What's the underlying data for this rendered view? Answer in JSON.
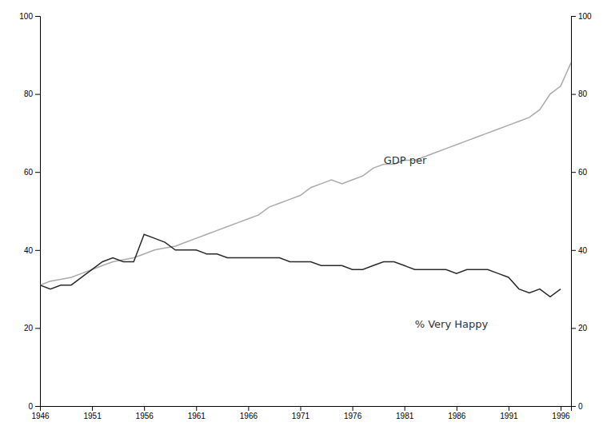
{
  "chart_data": {
    "type": "line",
    "xlim": [
      1946,
      1997
    ],
    "xticks": [
      1946,
      1951,
      1956,
      1961,
      1966,
      1971,
      1976,
      1981,
      1986,
      1991,
      1996
    ],
    "ylim": [
      0,
      100
    ],
    "yticks": [
      0,
      20,
      40,
      60,
      80,
      100
    ],
    "y2lim": [
      0,
      100
    ],
    "y2ticks": [
      0,
      20,
      40,
      60,
      80,
      100
    ],
    "grid": false,
    "series": [
      {
        "color": "#aaaaaa",
        "x": [
          1946,
          1947,
          1948,
          1949,
          1950,
          1951,
          1952,
          1953,
          1954,
          1955,
          1956,
          1957,
          1958,
          1959,
          1960,
          1961,
          1962,
          1963,
          1964,
          1965,
          1966,
          1967,
          1968,
          1969,
          1970,
          1971,
          1972,
          1973,
          1974,
          1975,
          1976,
          1977,
          1978,
          1979,
          1980,
          1981,
          1982,
          1983,
          1984,
          1985,
          1986,
          1987,
          1988,
          1989,
          1990,
          1991,
          1992,
          1993,
          1994,
          1995,
          1996,
          1997
        ],
        "values": [
          31,
          32,
          32.5,
          33,
          34,
          35,
          36,
          37,
          37.5,
          38,
          39,
          40,
          40.5,
          41,
          42,
          43,
          44,
          45,
          46,
          47,
          48,
          49,
          51,
          52,
          53,
          54,
          56,
          57,
          58,
          57,
          58,
          59,
          61,
          62,
          62,
          63,
          63,
          64,
          65,
          66,
          67,
          68,
          69,
          70,
          71,
          72,
          73,
          74,
          76,
          80,
          82,
          88
        ]
      },
      {
        "color": "#2a2a2a",
        "x": [
          1946,
          1947,
          1948,
          1949,
          1950,
          1951,
          1952,
          1953,
          1954,
          1955,
          1956,
          1957,
          1958,
          1959,
          1960,
          1961,
          1962,
          1963,
          1964,
          1965,
          1966,
          1967,
          1968,
          1969,
          1970,
          1971,
          1972,
          1973,
          1974,
          1975,
          1976,
          1977,
          1978,
          1979,
          1980,
          1981,
          1982,
          1983,
          1984,
          1985,
          1986,
          1987,
          1988,
          1989,
          1990,
          1991,
          1992,
          1993,
          1994,
          1995,
          1996
        ],
        "values": [
          31,
          30,
          31,
          31,
          33,
          35,
          37,
          38,
          37,
          37,
          44,
          43,
          42,
          40,
          40,
          40,
          39,
          39,
          38,
          38,
          38,
          38,
          38,
          38,
          37,
          37,
          37,
          36,
          36,
          36,
          35,
          35,
          36,
          37,
          37,
          36,
          35,
          35,
          35,
          35,
          34,
          35,
          35,
          35,
          34,
          33,
          30,
          29,
          30,
          28,
          30
        ]
      }
    ],
    "annotations": [
      {
        "text": "GDP per",
        "x": 1979,
        "y": 63
      },
      {
        "text": "% Very Happy",
        "x": 1982,
        "y": 21
      }
    ]
  }
}
